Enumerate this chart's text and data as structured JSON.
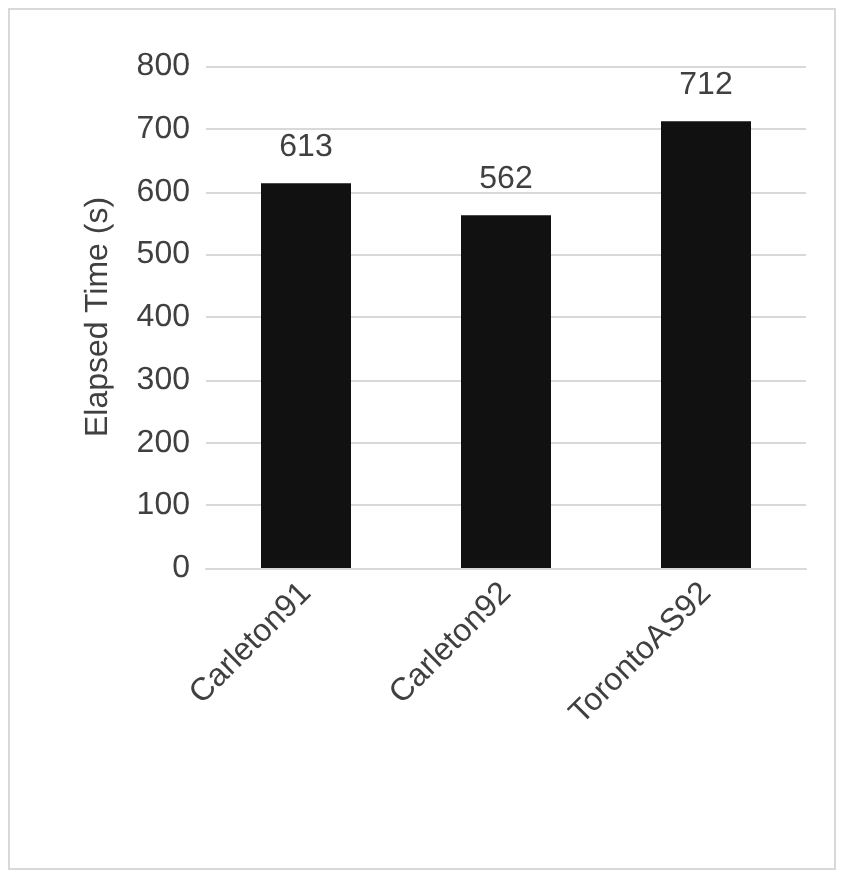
{
  "chart_data": {
    "type": "bar",
    "ylabel": "Elapsed Time (s)",
    "categories": [
      "Carleton91",
      "Carleton92",
      "TorontoAS92"
    ],
    "values": [
      613,
      562,
      712
    ],
    "color": "#111111",
    "ylim": [
      0,
      800
    ],
    "yticks": [
      0,
      100,
      200,
      300,
      400,
      500,
      600,
      700,
      800
    ],
    "grid": "y",
    "data_labels": true
  }
}
